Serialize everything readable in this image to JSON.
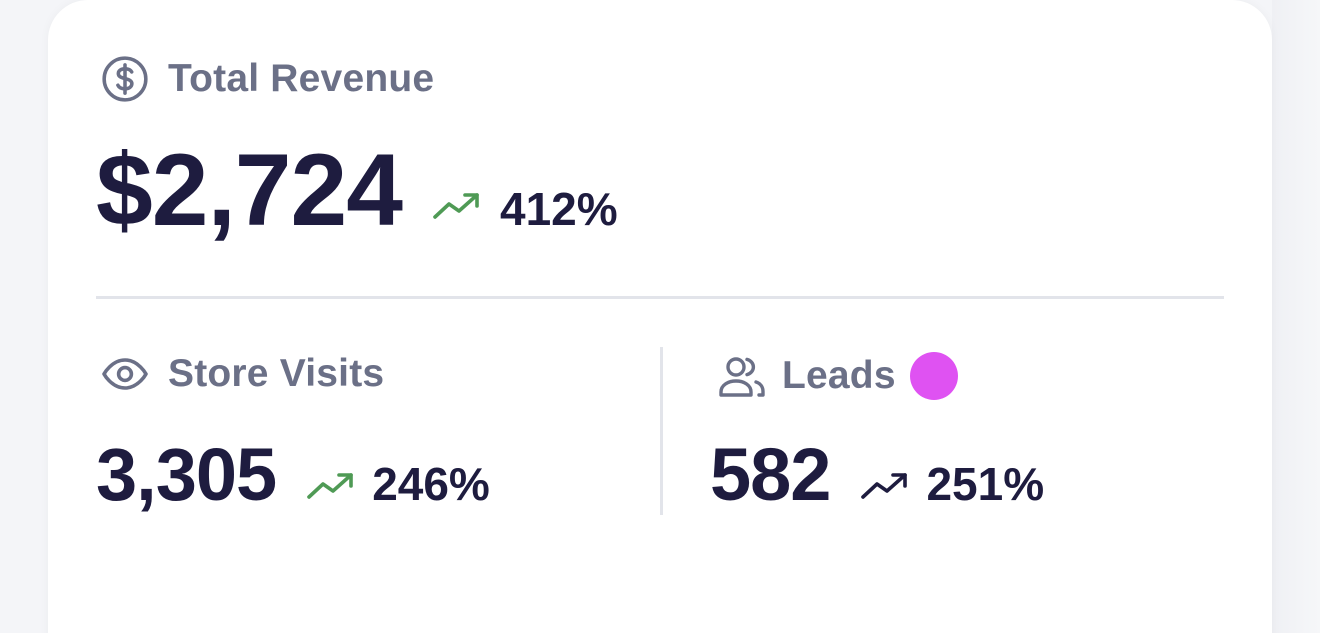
{
  "revenue": {
    "label": "Total Revenue",
    "icon": "dollar-circle-icon",
    "value": "$2,724",
    "change": "412%",
    "trend_icon": "trending-up-icon",
    "trend_color": "#4f9a55"
  },
  "store_visits": {
    "label": "Store Visits",
    "icon": "eye-icon",
    "value": "3,305",
    "change": "246%",
    "trend_icon": "trending-up-icon",
    "trend_color": "#4f9a55"
  },
  "leads": {
    "label": "Leads",
    "icon": "users-icon",
    "value": "582",
    "change": "251%",
    "trend_icon": "trending-up-icon",
    "trend_color": "#1e1c3f",
    "badge_color": "#df52f2"
  },
  "colors": {
    "label": "#6b7087",
    "value": "#1e1c3f",
    "divider": "#e2e4ea",
    "card": "#ffffff"
  }
}
